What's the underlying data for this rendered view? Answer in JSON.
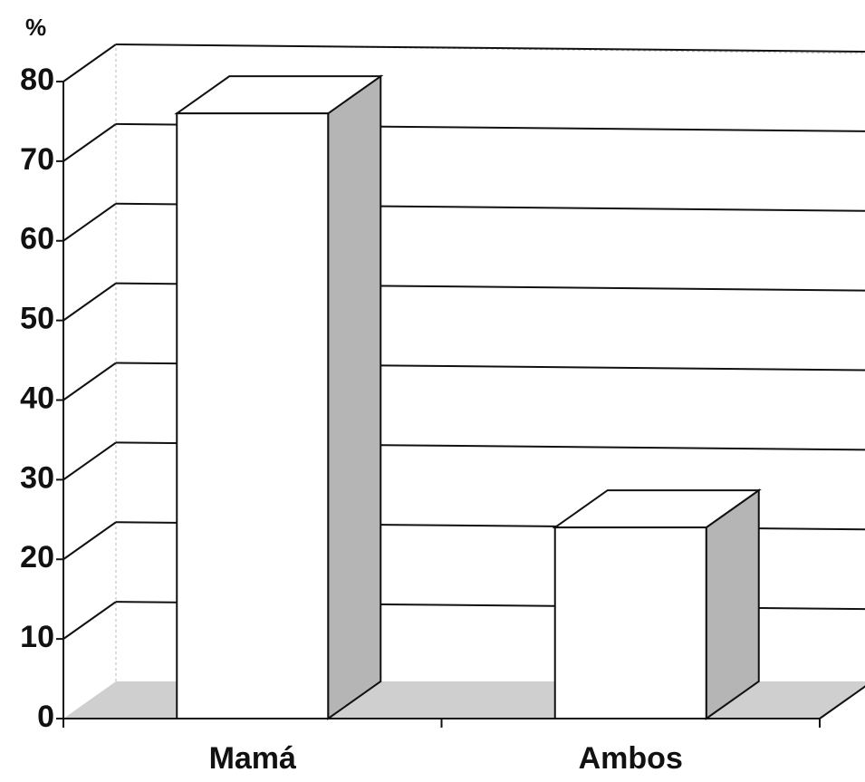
{
  "chart_data": {
    "type": "bar3d",
    "y_label": "%",
    "categories": [
      "Mamá",
      "Ambos"
    ],
    "values": [
      76,
      24
    ],
    "color": "#ffffff",
    "ylim": [
      0,
      80
    ],
    "yticks": [
      0,
      10,
      20,
      30,
      40,
      50,
      60,
      70,
      80
    ],
    "grid": true
  }
}
